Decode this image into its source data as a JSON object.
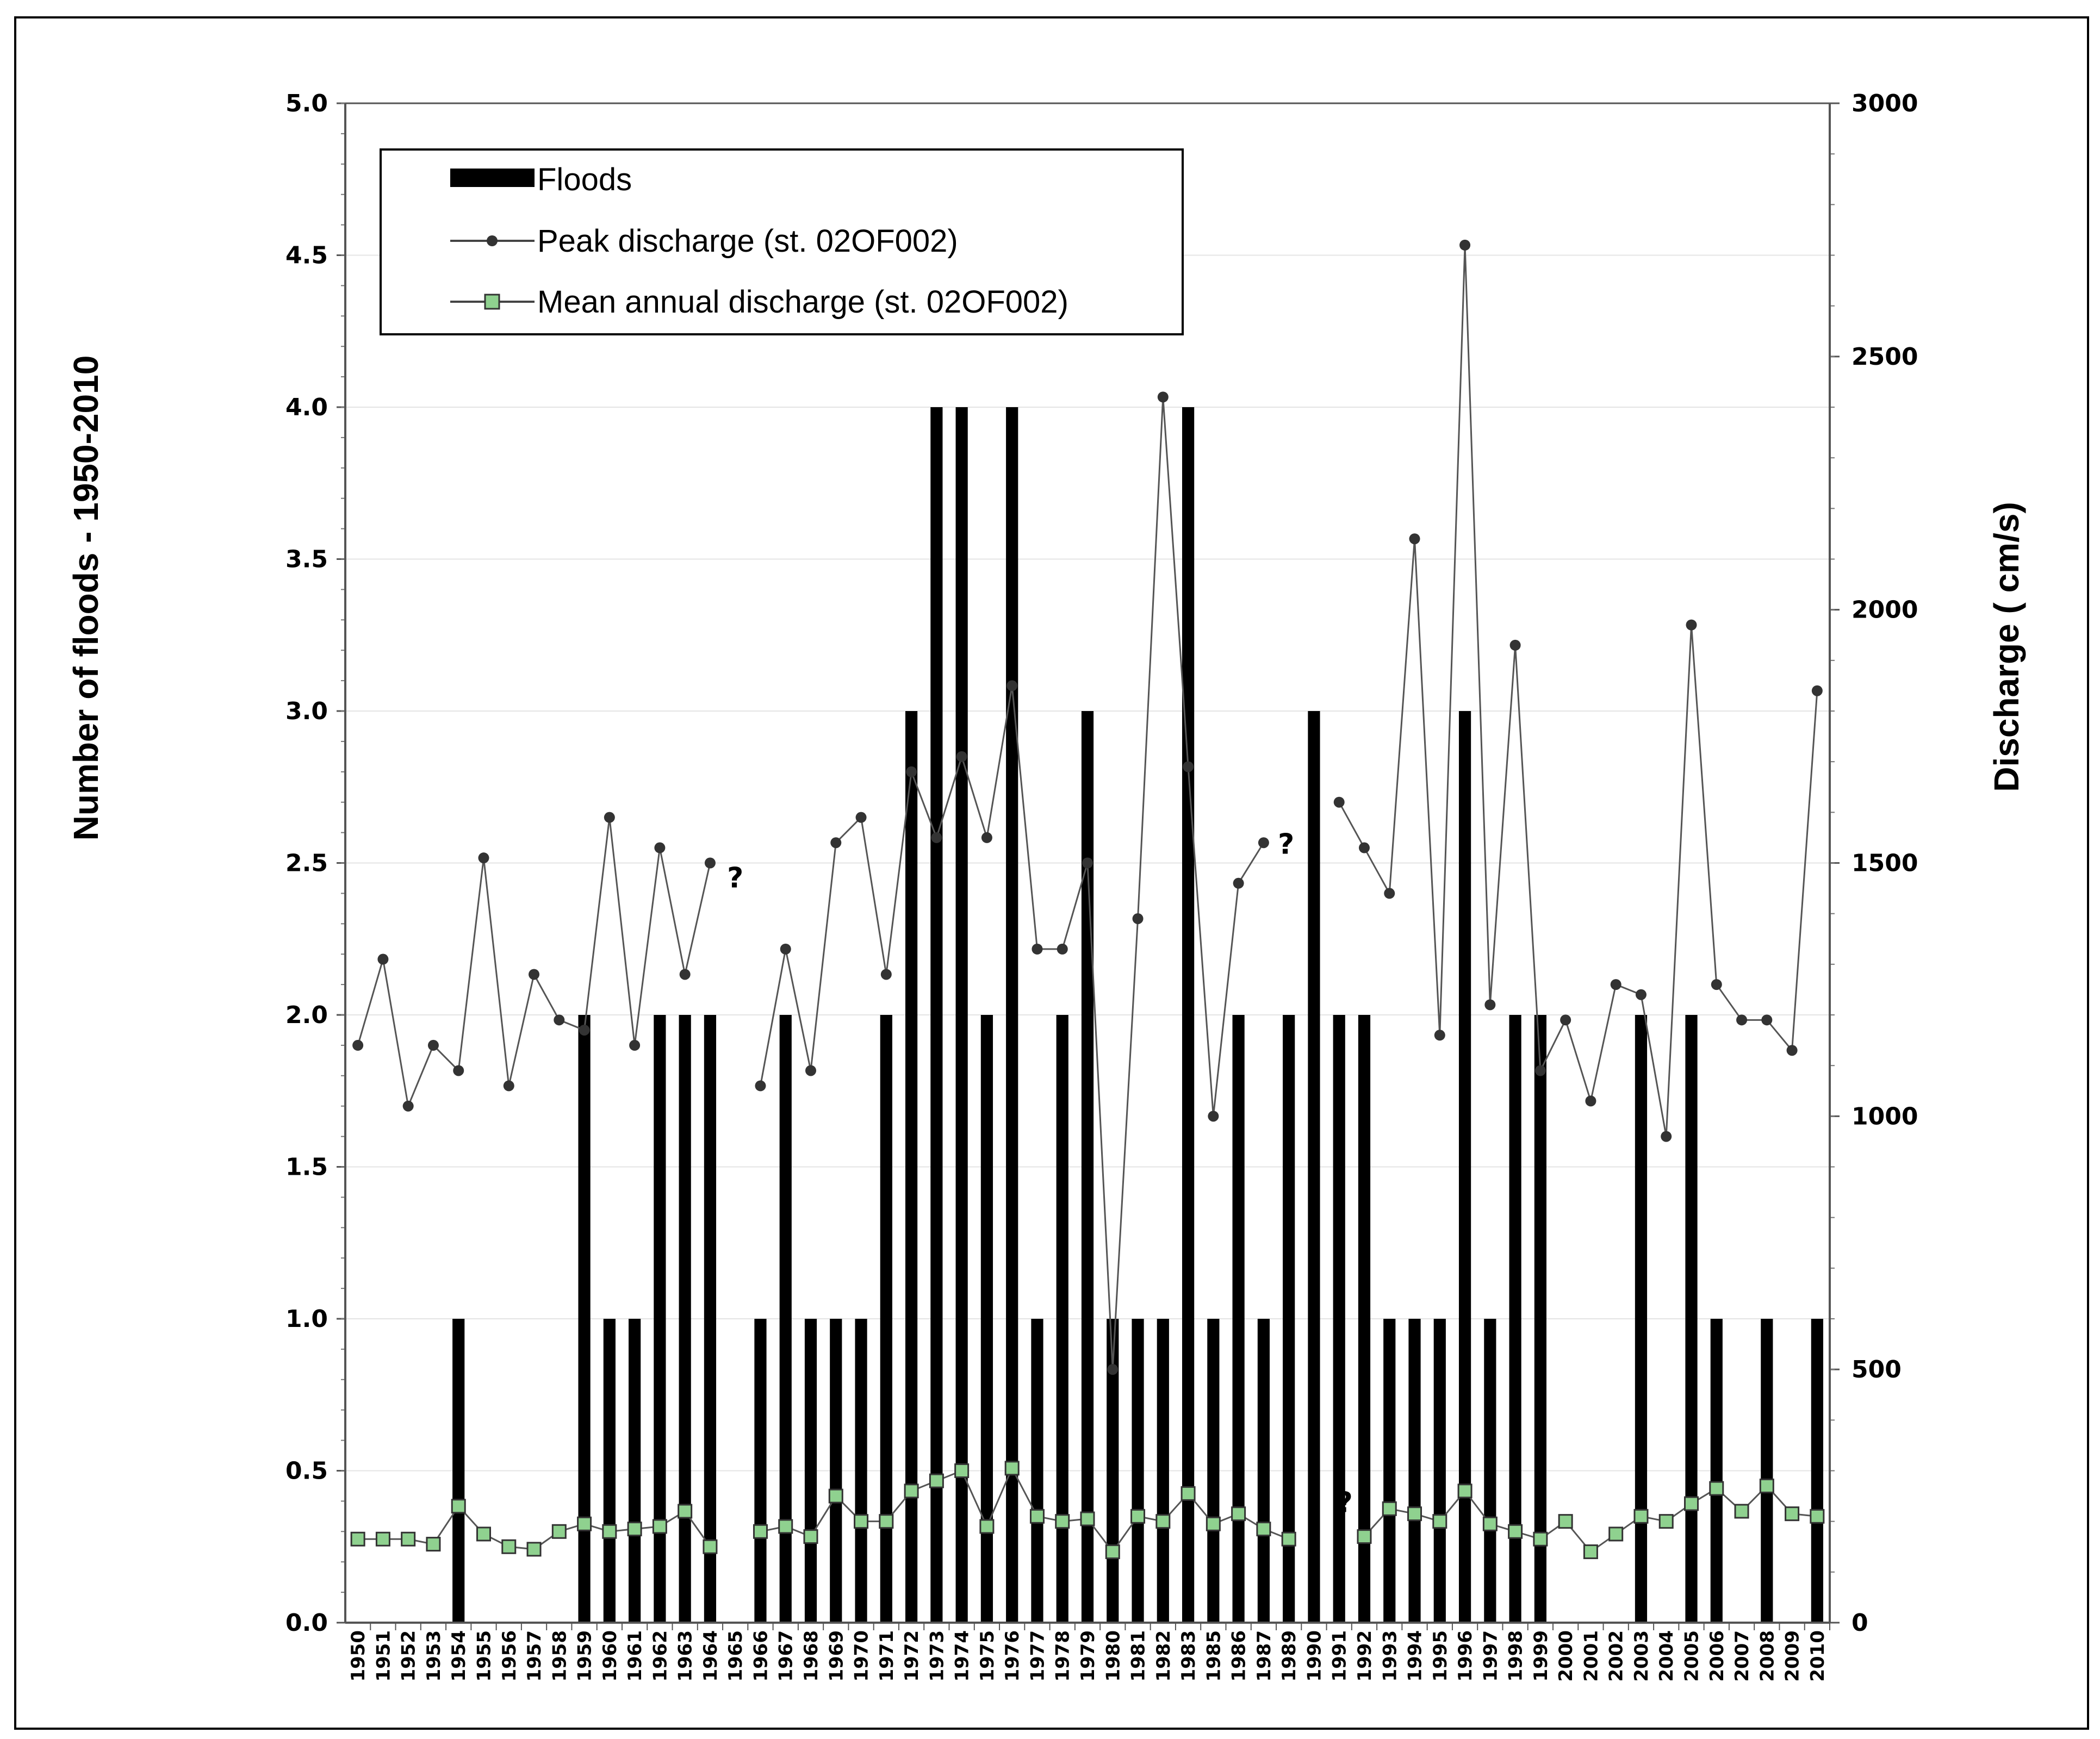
{
  "chart_data": {
    "type": "bar+line",
    "title": "",
    "ylabel_left": "Number of floods - 1950-2010",
    "ylabel_right": "Discharge ( cm/s)",
    "xlabel": "",
    "ylim_left": [
      0,
      5
    ],
    "ylim_right": [
      0,
      3000
    ],
    "yticks_left": [
      "0.0",
      "0.5",
      "1.0",
      "1.5",
      "2.0",
      "2.5",
      "3.0",
      "3.5",
      "4.0",
      "4.5",
      "5.0"
    ],
    "yticks_right": [
      "0",
      "500",
      "1000",
      "1500",
      "2000",
      "2500",
      "3000"
    ],
    "grid": true,
    "legend_position": "top-left",
    "categories": [
      "1950",
      "1951",
      "1952",
      "1953",
      "1954",
      "1955",
      "1956",
      "1957",
      "1958",
      "1959",
      "1960",
      "1961",
      "1962",
      "1963",
      "1964",
      "1965",
      "1966",
      "1967",
      "1968",
      "1969",
      "1970",
      "1971",
      "1972",
      "1973",
      "1974",
      "1975",
      "1976",
      "1977",
      "1978",
      "1979",
      "1980",
      "1981",
      "1982",
      "1983",
      "1985",
      "1986",
      "1987",
      "1989",
      "1990",
      "1991",
      "1992",
      "1993",
      "1994",
      "1995",
      "1996",
      "1997",
      "1998",
      "1999",
      "2000",
      "2001",
      "2002",
      "2003",
      "2004",
      "2005",
      "2006",
      "2007",
      "2008",
      "2009",
      "2010"
    ],
    "series": [
      {
        "name": "Floods",
        "kind": "bar",
        "axis": "left",
        "color": "#000000",
        "values": [
          0,
          0,
          0,
          0,
          1,
          0,
          0,
          0,
          0,
          2,
          1,
          1,
          2,
          2,
          2,
          0,
          1,
          2,
          1,
          1,
          1,
          2,
          3,
          4,
          4,
          2,
          4,
          1,
          2,
          3,
          1,
          1,
          1,
          4,
          1,
          2,
          1,
          2,
          3,
          2,
          2,
          1,
          1,
          1,
          3,
          1,
          2,
          2,
          0,
          0,
          0,
          2,
          0,
          2,
          1,
          0,
          1,
          0,
          1
        ]
      },
      {
        "name": "Peak discharge  (st. 02OF002)",
        "kind": "line",
        "axis": "right",
        "color": "#444444",
        "marker": "circle",
        "values": [
          1140,
          1310,
          1020,
          1140,
          1090,
          1510,
          1060,
          1280,
          1190,
          1170,
          1590,
          1140,
          1530,
          1280,
          1500,
          null,
          1060,
          1330,
          1090,
          1540,
          1590,
          1280,
          1680,
          1550,
          1710,
          1550,
          1850,
          1330,
          1330,
          1500,
          500,
          1390,
          2420,
          1690,
          1000,
          1460,
          1540,
          null,
          null,
          1620,
          1530,
          1440,
          2140,
          1160,
          2720,
          1220,
          1930,
          1090,
          1190,
          1030,
          1260,
          1240,
          960,
          1970,
          1260,
          1190,
          1190,
          1130,
          1840
        ]
      },
      {
        "name": "Mean annual discharge (st. 02OF002)",
        "kind": "line",
        "axis": "right",
        "color": "#8fd18f",
        "marker": "square",
        "values": [
          165,
          165,
          165,
          155,
          230,
          175,
          150,
          145,
          180,
          195,
          180,
          185,
          190,
          220,
          150,
          null,
          180,
          190,
          170,
          250,
          200,
          200,
          260,
          280,
          300,
          190,
          305,
          210,
          200,
          205,
          140,
          210,
          200,
          255,
          195,
          215,
          185,
          165,
          null,
          null,
          170,
          225,
          215,
          200,
          260,
          195,
          180,
          165,
          200,
          140,
          175,
          210,
          200,
          235,
          265,
          220,
          270,
          215,
          210
        ]
      }
    ],
    "annotations": [
      {
        "text": "?",
        "near": "1965"
      },
      {
        "text": "?",
        "near": "1989"
      },
      {
        "text": "?",
        "near": "1991"
      }
    ]
  },
  "legend": {
    "items": [
      {
        "label": "Floods",
        "icon": "black-bar-icon"
      },
      {
        "label": "Peak discharge  (st. 02OF002)",
        "icon": "circle-marker-line-icon"
      },
      {
        "label": "Mean annual discharge (st. 02OF002)",
        "icon": "square-marker-line-icon"
      }
    ]
  }
}
